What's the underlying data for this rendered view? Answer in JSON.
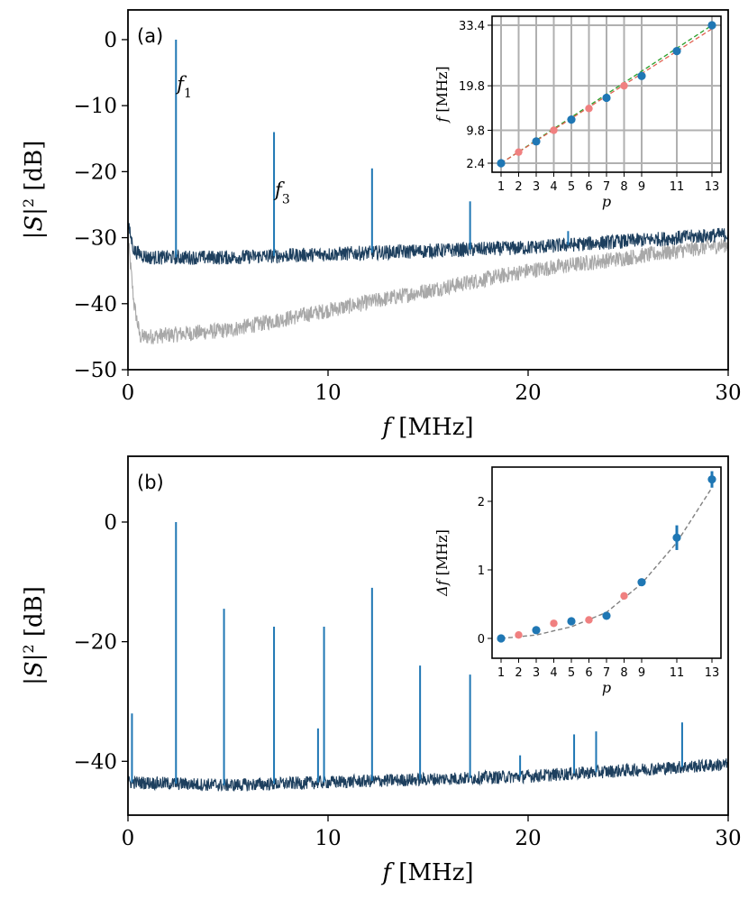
{
  "colors": {
    "blue": "#1f77b4",
    "dark": "#1d3f5e",
    "gray": "#a8a8a8",
    "red": "#f08080",
    "green": "#2ca02c",
    "fit": "#808080"
  },
  "chart_data": [
    {
      "panel": "(a)",
      "type": "line",
      "xlabel_var": "f",
      "xlabel_unit": "[MHz]",
      "ylabel_var": "|S|",
      "ylabel_exp": "2",
      "ylabel_unit": "[dB]",
      "xlim": [
        0,
        30
      ],
      "ylim": [
        -50,
        4.5
      ],
      "xticks": [
        "0",
        "10",
        "20",
        "30"
      ],
      "xtick_values": [
        0,
        10,
        20,
        30
      ],
      "yticks": [
        "0",
        "−10",
        "−20",
        "−30",
        "−40",
        "−50"
      ],
      "ytick_values": [
        0,
        -10,
        -20,
        -30,
        -40,
        -50
      ],
      "series": [
        {
          "name": "background (gray)",
          "x": [
            0,
            0.3,
            0.6,
            1.0,
            5,
            10,
            15,
            20,
            25,
            30
          ],
          "y": [
            -30,
            -40,
            -45,
            -45,
            -44,
            -41,
            -38,
            -35,
            -33,
            -31
          ]
        },
        {
          "name": "noise floor (dark)",
          "x": [
            0,
            0.3,
            1,
            5,
            10,
            15,
            20,
            25,
            30
          ],
          "y": [
            -28,
            -32,
            -33,
            -33,
            -32.5,
            -32,
            -31.5,
            -30.5,
            -29.5
          ]
        },
        {
          "name": "spectrum peaks (blue)",
          "x": [
            2.4,
            7.3,
            12.2,
            17.1,
            22.0
          ],
          "y": [
            0,
            -14,
            -19.5,
            -24.5,
            -29
          ]
        }
      ],
      "annotations": [
        {
          "text": "f",
          "sub": "1",
          "x": 2.4,
          "y": -7
        },
        {
          "text": "f",
          "sub": "3",
          "x": 7.3,
          "y": -23
        }
      ]
    },
    {
      "panel": "inset (a)",
      "type": "scatter",
      "xlabel": "p",
      "ylabel_var": "f",
      "ylabel_unit": "[MHz]",
      "xticks": [
        "1",
        "2",
        "3",
        "4",
        "5",
        "6",
        "7",
        "8",
        "9",
        "11",
        "13"
      ],
      "yticks": [
        "2.4",
        "9.8",
        "19.8",
        "33.4"
      ],
      "series": [
        {
          "name": "odd p (blue)",
          "p": [
            1,
            3,
            5,
            7,
            9,
            11,
            13
          ],
          "f": [
            2.4,
            7.3,
            12.2,
            17.1,
            22.0,
            27.6,
            33.4
          ]
        },
        {
          "name": "even p (red)",
          "p": [
            2,
            4,
            6,
            8
          ],
          "f": [
            4.9,
            9.8,
            14.7,
            19.8
          ]
        }
      ]
    },
    {
      "panel": "(b)",
      "type": "line",
      "xlabel_var": "f",
      "xlabel_unit": "[MHz]",
      "ylabel_var": "|S|",
      "ylabel_exp": "2",
      "ylabel_unit": "[dB]",
      "xlim": [
        0,
        30
      ],
      "ylim": [
        -49,
        11
      ],
      "xticks": [
        "0",
        "10",
        "20",
        "30"
      ],
      "xtick_values": [
        0,
        10,
        20,
        30
      ],
      "yticks": [
        "0",
        "−20",
        "−40"
      ],
      "ytick_values": [
        0,
        -20,
        -40
      ],
      "series": [
        {
          "name": "noise floor (dark)",
          "x": [
            0,
            5,
            10,
            15,
            20,
            25,
            30
          ],
          "y": [
            -43.5,
            -44,
            -43.5,
            -43,
            -42.5,
            -41.5,
            -40.5
          ]
        },
        {
          "name": "spectrum peaks (blue)",
          "x": [
            0.2,
            2.4,
            4.8,
            7.3,
            9.5,
            9.8,
            12.2,
            14.6,
            17.1,
            19.6,
            22.3,
            23.4,
            27.7
          ],
          "y": [
            -32,
            0,
            -14.5,
            -17.5,
            -34.5,
            -17.5,
            -11,
            -24,
            -25.5,
            -39,
            -35.5,
            -35,
            -33.5
          ]
        }
      ]
    },
    {
      "panel": "inset (b)",
      "type": "scatter",
      "xlabel": "p",
      "ylabel_var": "Δf",
      "ylabel_unit": "[MHz]",
      "xticks": [
        "1",
        "2",
        "3",
        "4",
        "5",
        "6",
        "7",
        "8",
        "9",
        "11",
        "13"
      ],
      "yticks": [
        "0",
        "1",
        "2"
      ],
      "series": [
        {
          "name": "odd p (blue)",
          "p": [
            1,
            3,
            5,
            7,
            9,
            11,
            13
          ],
          "df": [
            0,
            0.12,
            0.25,
            0.33,
            0.82,
            1.47,
            2.32
          ]
        },
        {
          "name": "even p (red)",
          "p": [
            2,
            4,
            6,
            8
          ],
          "df": [
            0.05,
            0.22,
            0.27,
            0.62
          ]
        },
        {
          "name": "fit (dashed)",
          "p": [
            1,
            3,
            5,
            7,
            9,
            11,
            13
          ],
          "df": [
            0,
            0.05,
            0.17,
            0.38,
            0.8,
            1.4,
            2.2
          ]
        }
      ]
    }
  ]
}
